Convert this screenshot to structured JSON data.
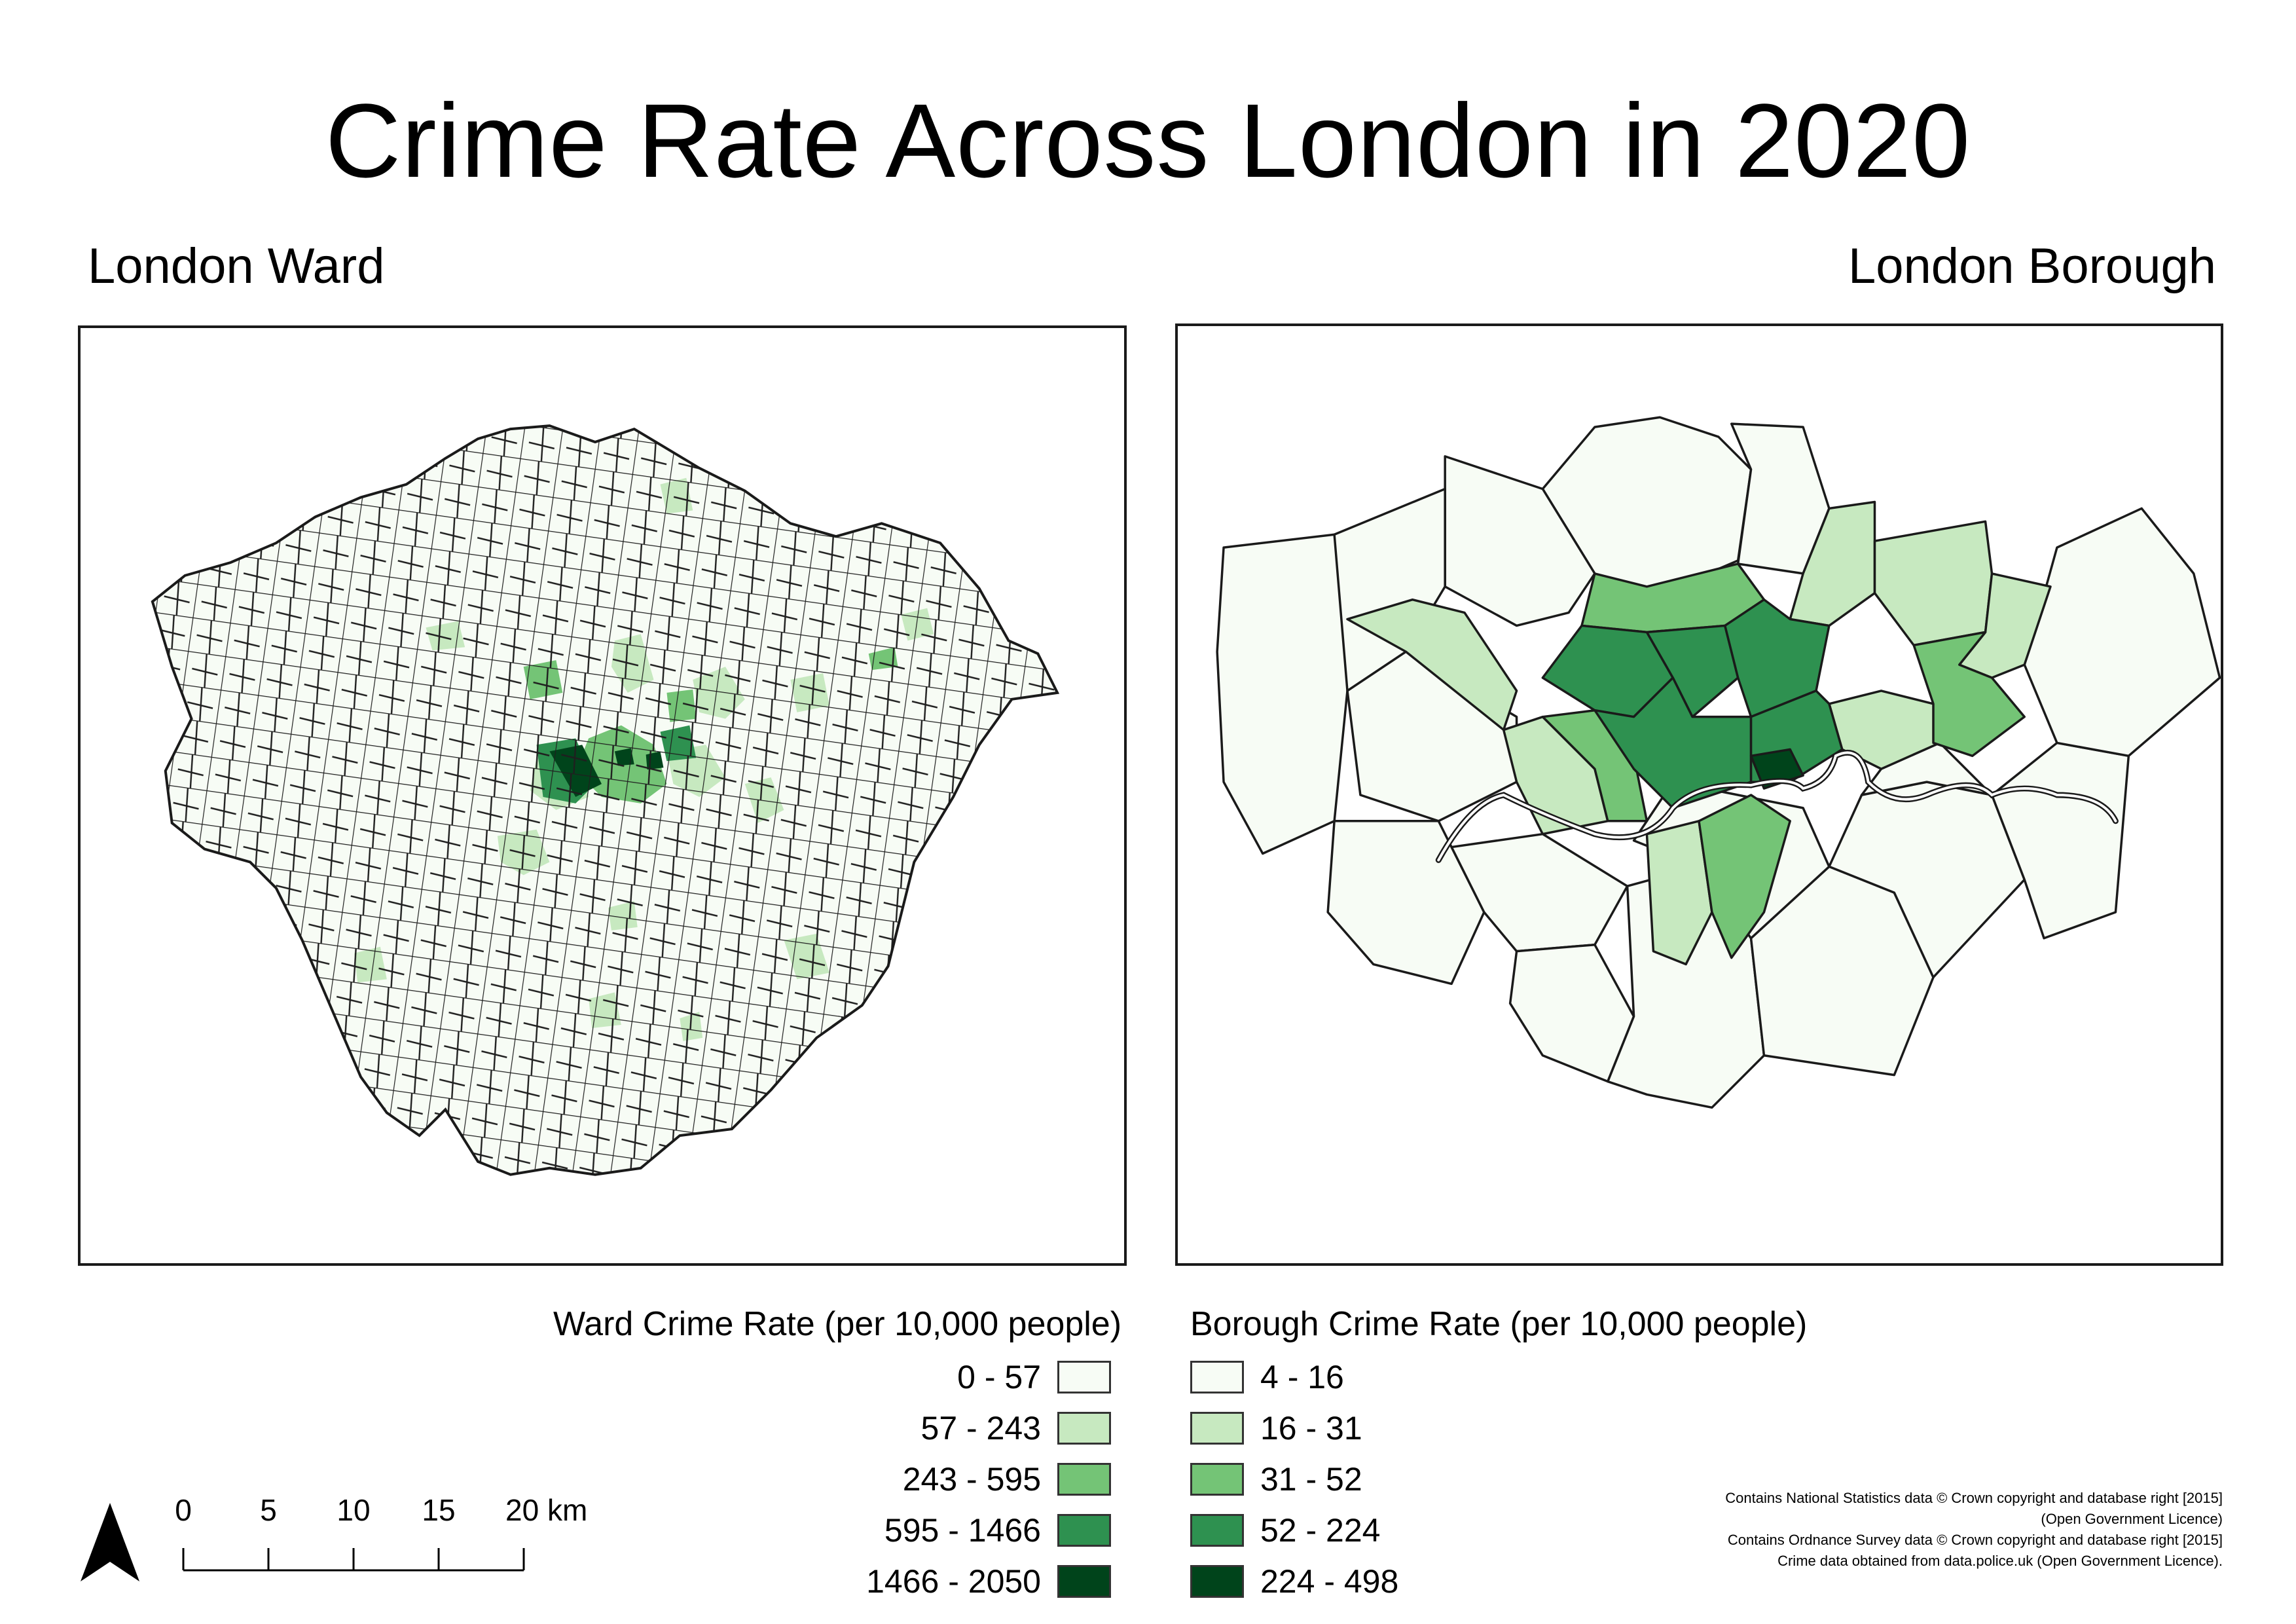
{
  "title": "Crime Rate Across London in 2020",
  "maps": {
    "left_title": "London Ward",
    "right_title": "London Borough"
  },
  "legends": {
    "ward": {
      "title": "Ward Crime Rate (per 10,000 people)",
      "classes": [
        {
          "label": "0 - 57",
          "color": "#f7fcf5"
        },
        {
          "label": "57 - 243",
          "color": "#c7e9c0"
        },
        {
          "label": "243 - 595",
          "color": "#74c476"
        },
        {
          "label": "595 - 1466",
          "color": "#2e9150"
        },
        {
          "label": "1466 - 2050",
          "color": "#00441b"
        }
      ]
    },
    "borough": {
      "title": "Borough Crime Rate (per 10,000 people)",
      "classes": [
        {
          "label": "4 - 16",
          "color": "#f7fcf5"
        },
        {
          "label": "16 - 31",
          "color": "#c7e9c0"
        },
        {
          "label": "31 - 52",
          "color": "#74c476"
        },
        {
          "label": "52 - 224",
          "color": "#2e9150"
        },
        {
          "label": "224 - 498",
          "color": "#00441b"
        }
      ]
    }
  },
  "scale_bar": {
    "ticks": [
      "0",
      "5",
      "10",
      "15",
      "20 km"
    ]
  },
  "north_arrow_icon": "north-arrow-icon",
  "credits": [
    "Contains National Statistics data © Crown copyright and database right [2015]",
    "(Open Government Licence)",
    "Contains Ordnance Survey data © Crown copyright and database right [2015]",
    "Crime data obtained from data.police.uk (Open Government Licence)."
  ]
}
